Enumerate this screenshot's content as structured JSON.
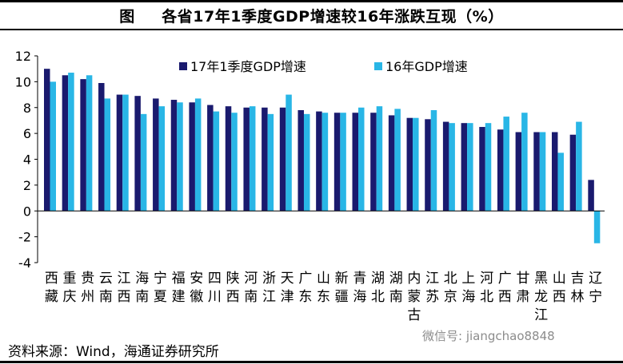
{
  "figure_label": "图",
  "title": "各省17年1季度GDP增速较16年涨跌互现（%）",
  "source": "资料来源：Wind，海通证券研究所",
  "watermark": "微信号: jiangchao8848",
  "colors": {
    "series1": "#1a1a6e",
    "series2": "#29b6e6"
  },
  "chart_data": {
    "type": "bar",
    "title": "各省17年1季度GDP增速较16年涨跌互现（%）",
    "xlabel": "",
    "ylabel": "",
    "ylim": [
      -4,
      12
    ],
    "yticks": [
      -4,
      -2,
      0,
      2,
      4,
      6,
      8,
      10,
      12
    ],
    "grid": false,
    "legend": "top",
    "categories": [
      "西藏",
      "重庆",
      "贵州",
      "云南",
      "江西",
      "海南",
      "宁夏",
      "福建",
      "安徽",
      "四川",
      "陕西",
      "河南",
      "浙江",
      "天津",
      "广东",
      "山东",
      "新疆",
      "青海",
      "湖北",
      "湖南",
      "内蒙古",
      "江苏",
      "北京",
      "上海",
      "河北",
      "广西",
      "甘肃",
      "黑龙江",
      "山西",
      "吉林",
      "辽宁"
    ],
    "series": [
      {
        "name": "17年1季度GDP增速",
        "values": [
          11.0,
          10.5,
          10.2,
          9.9,
          9.0,
          8.9,
          8.7,
          8.6,
          8.4,
          8.2,
          8.1,
          8.0,
          8.0,
          8.0,
          7.8,
          7.7,
          7.6,
          7.6,
          7.6,
          7.4,
          7.2,
          7.1,
          6.9,
          6.8,
          6.5,
          6.3,
          6.1,
          6.1,
          6.1,
          5.9,
          2.4
        ]
      },
      {
        "name": "16年GDP增速",
        "values": [
          10.0,
          10.7,
          10.5,
          8.7,
          9.0,
          7.5,
          8.1,
          8.4,
          8.7,
          7.7,
          7.6,
          8.1,
          7.5,
          9.0,
          7.5,
          7.6,
          7.6,
          8.0,
          8.1,
          7.9,
          7.2,
          7.8,
          6.8,
          6.8,
          6.8,
          7.3,
          7.6,
          6.1,
          4.5,
          6.9,
          -2.5
        ]
      }
    ]
  }
}
